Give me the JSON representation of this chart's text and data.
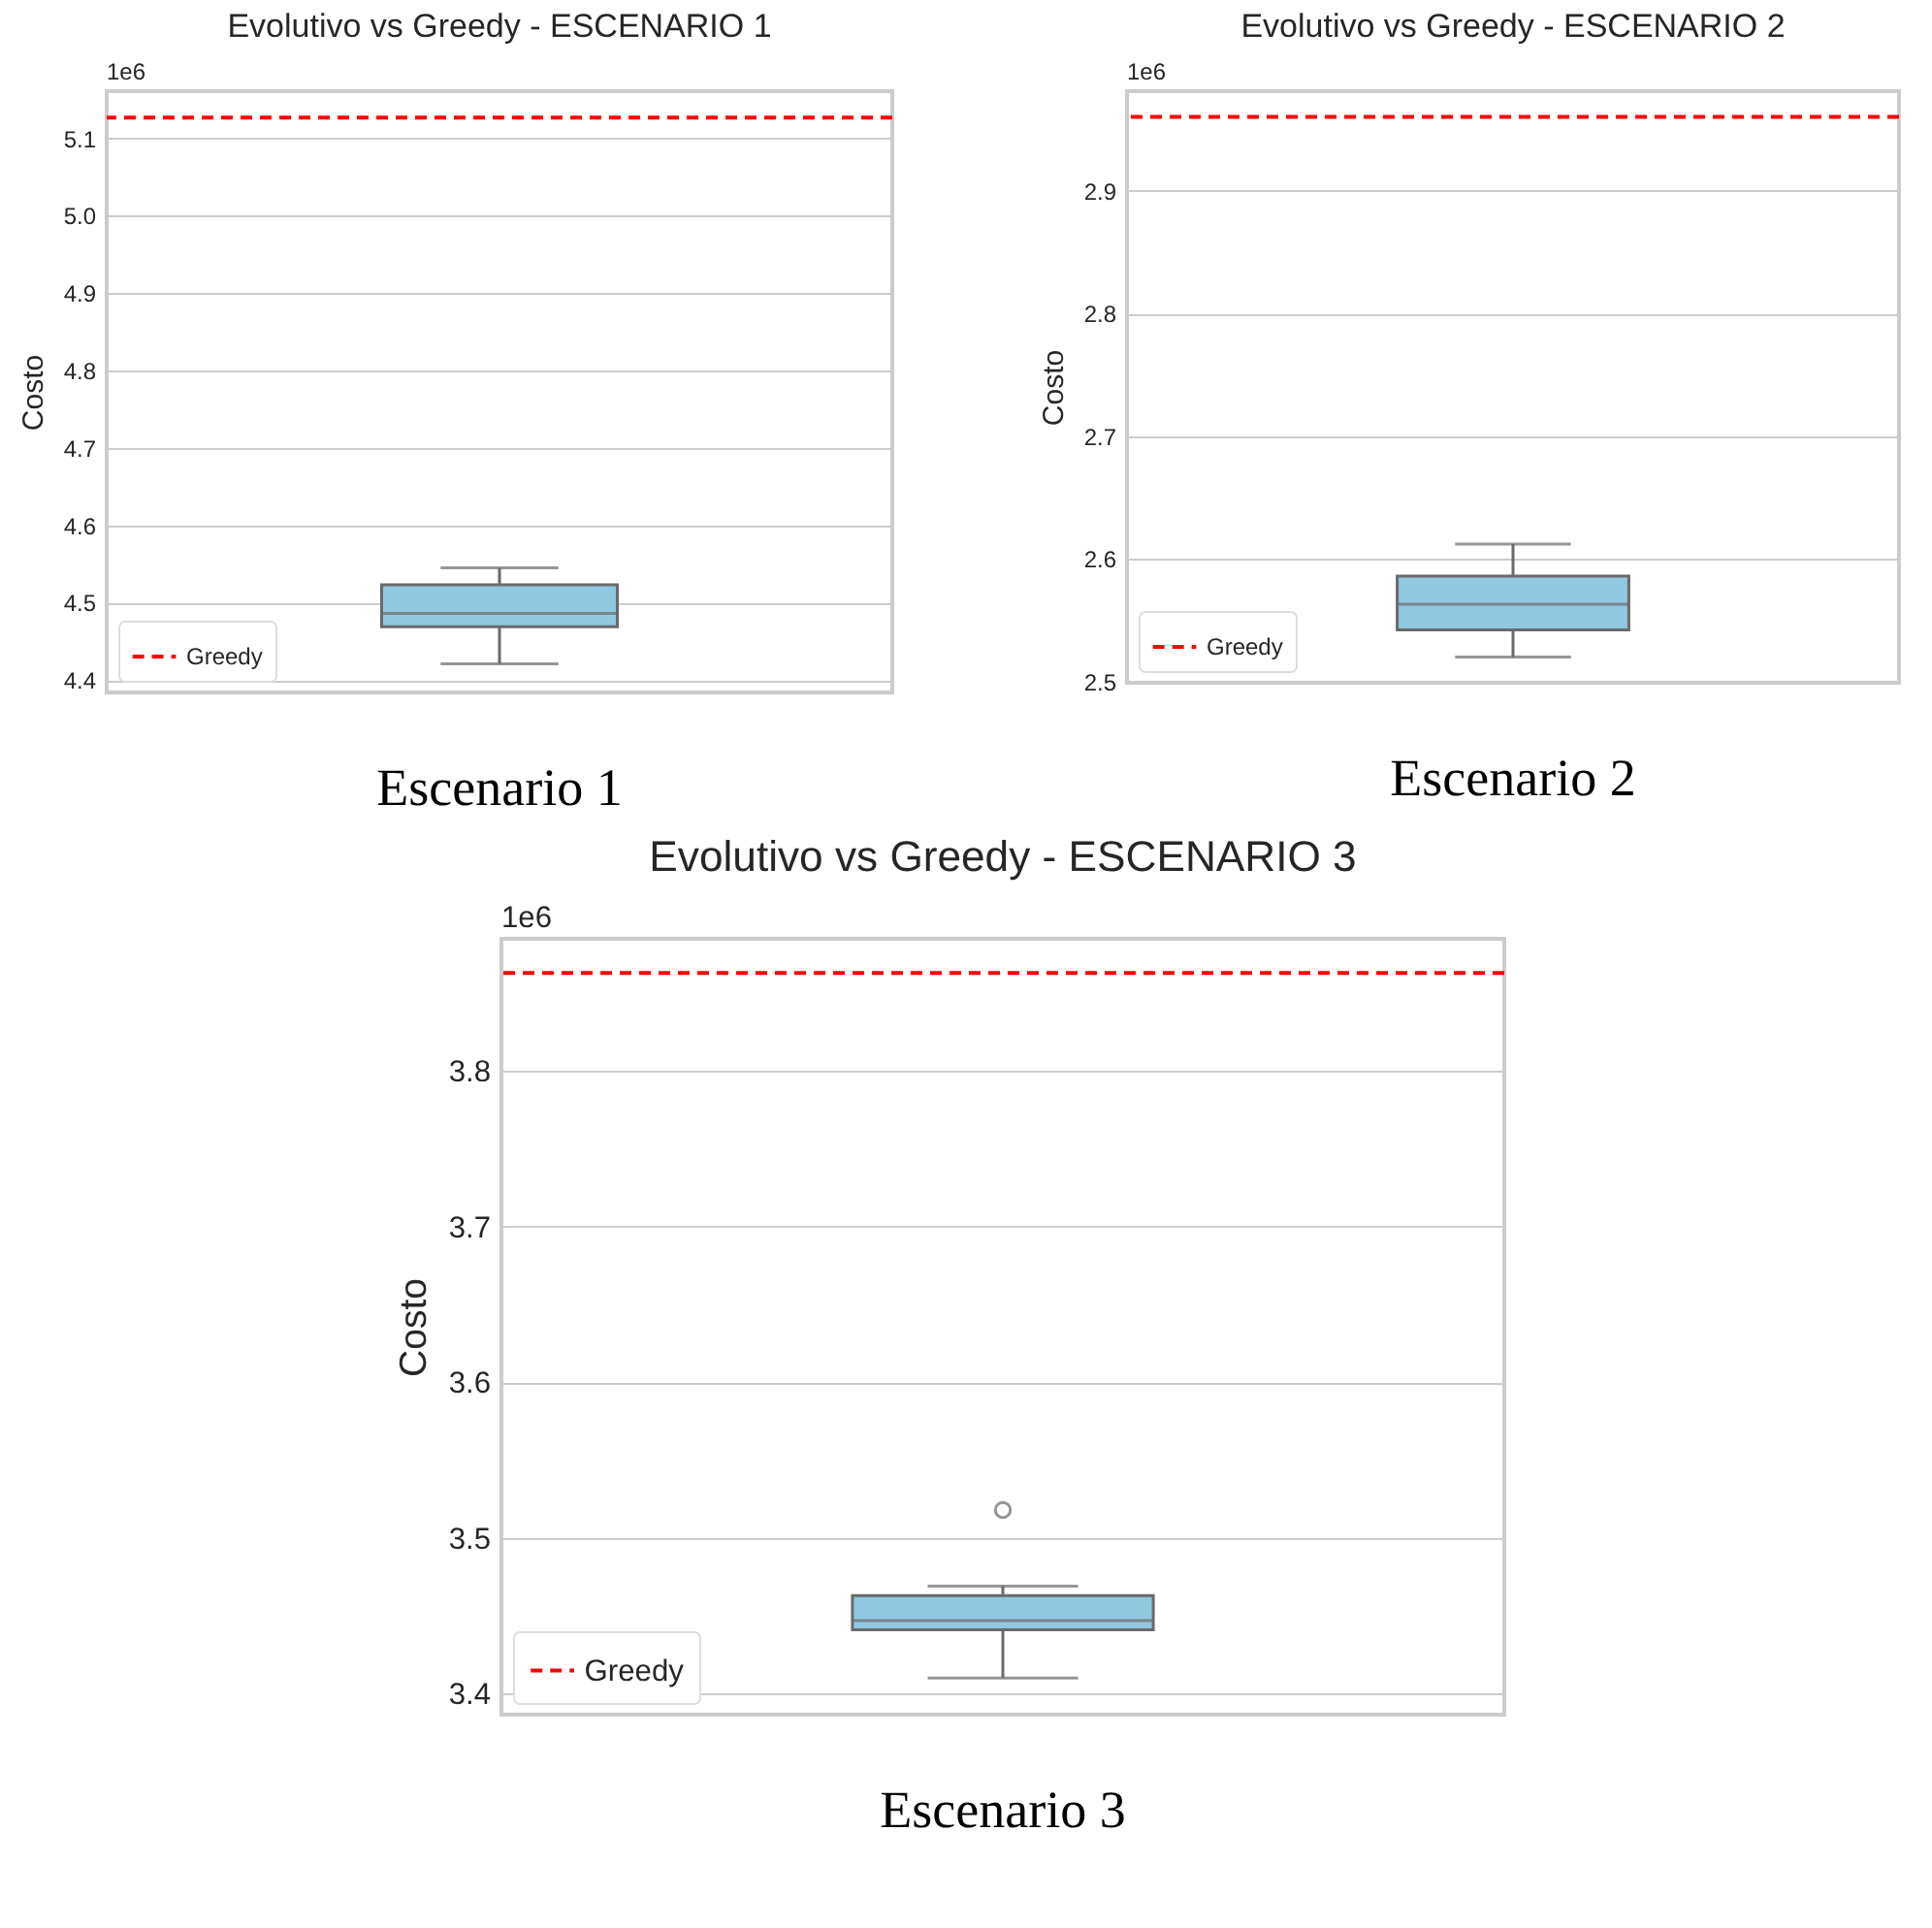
{
  "chart_data": [
    {
      "type": "box",
      "title": "Evolutivo vs Greedy - ESCENARIO 1",
      "ylabel": "Costo",
      "categories": [
        null
      ],
      "series": [
        {
          "color": "#90c8df",
          "boxes": [
            {
              "low": 4.421,
              "q1": 4.469,
              "median": 4.486,
              "q3": 4.523,
              "high": 4.545
            }
          ]
        }
      ],
      "ylim": [
        4.384,
        5.161
      ],
      "yticks": [
        4.4,
        4.5,
        4.6,
        4.7,
        4.8,
        4.9,
        {
          "value": 5.0,
          "label": "5.0"
        },
        5.1
      ],
      "grid": "y",
      "legend": "bottom left",
      "tick_labels": "y",
      "ref_lines": [
        {
          "axis": "y",
          "value": 5.127,
          "label": "Greedy",
          "color": "#ff0000",
          "line_style": "dashed"
        }
      ],
      "annotations": [
        "1e6",
        "Escenario 1"
      ]
    },
    {
      "type": "box",
      "title": "Evolutivo vs Greedy - ESCENARIO 2",
      "ylabel": "Costo",
      "categories": [
        null
      ],
      "series": [
        {
          "color": "#90c8df",
          "boxes": [
            {
              "low": 2.52,
              "q1": 2.542,
              "median": 2.563,
              "q3": 2.586,
              "high": 2.612
            }
          ]
        }
      ],
      "ylim": [
        2.499,
        2.981
      ],
      "yticks": [
        2.5,
        2.6,
        2.7,
        2.8,
        2.9
      ],
      "grid": "y",
      "legend": "bottom left",
      "tick_labels": "y",
      "ref_lines": [
        {
          "axis": "y",
          "value": 2.96,
          "label": "Greedy",
          "color": "#ff0000",
          "line_style": "dashed"
        }
      ],
      "annotations": [
        "1e6",
        "Escenario 2"
      ]
    },
    {
      "type": "box",
      "title": "Evolutivo vs Greedy - ESCENARIO 3",
      "ylabel": "Costo",
      "categories": [
        null
      ],
      "series": [
        {
          "color": "#90c8df",
          "boxes": [
            {
              "low": 3.41,
              "q1": 3.441,
              "median": 3.447,
              "q3": 3.463,
              "high": 3.469,
              "outliers": [
                3.518
              ]
            }
          ]
        }
      ],
      "ylim": [
        3.3865,
        3.885
      ],
      "yticks": [
        3.4,
        3.5,
        3.6,
        3.7,
        3.8
      ],
      "grid": "y",
      "legend": "bottom left",
      "tick_labels": "y",
      "ref_lines": [
        {
          "axis": "y",
          "value": 3.863,
          "label": "Greedy",
          "color": "#ff0000",
          "line_style": "dashed"
        }
      ],
      "annotations": [
        "1e6",
        "Escenario 3"
      ]
    }
  ]
}
